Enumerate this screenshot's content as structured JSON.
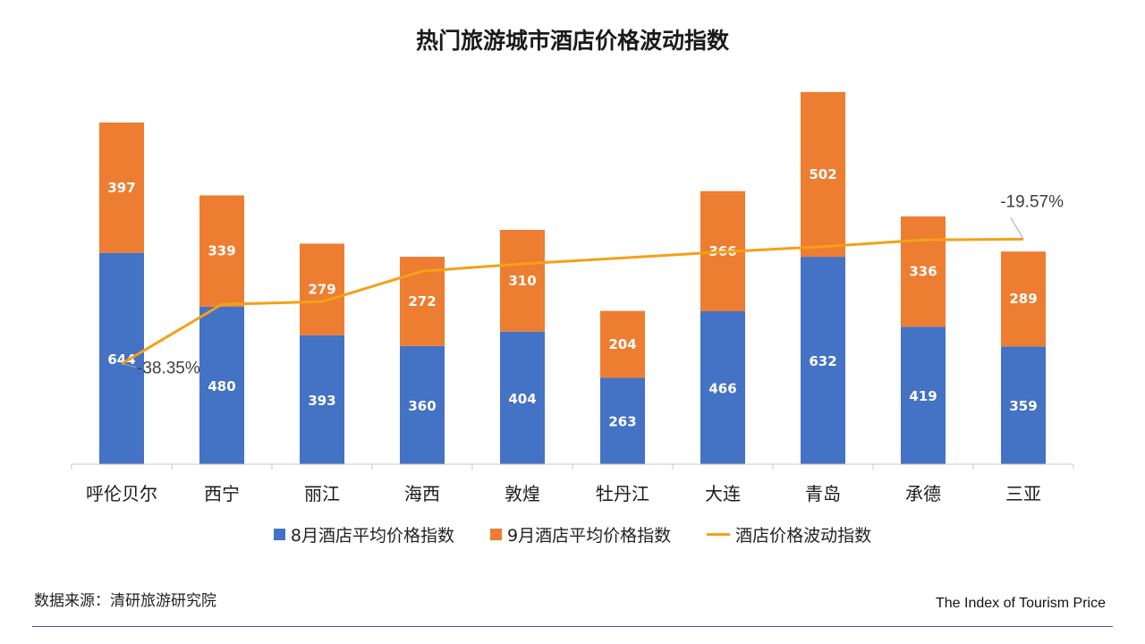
{
  "title": "热门旅游城市酒店价格波动指数",
  "chart_data": {
    "type": "bar",
    "stacked": true,
    "categories": [
      "呼伦贝尔",
      "西宁",
      "丽江",
      "海西",
      "敦煌",
      "牡丹江",
      "大连",
      "青岛",
      "承德",
      "三亚"
    ],
    "series": [
      {
        "name": "8月酒店平均价格指数",
        "type": "bar",
        "color": "#4472C4",
        "values": [
          644,
          480,
          393,
          360,
          404,
          263,
          466,
          632,
          419,
          359
        ]
      },
      {
        "name": "9月酒店平均价格指数",
        "type": "bar",
        "color": "#ED7D31",
        "values": [
          397,
          339,
          279,
          272,
          310,
          204,
          366,
          502,
          336,
          289
        ]
      },
      {
        "name": "酒店价格波动指数",
        "type": "line",
        "color": "#F5A016",
        "values": [
          -38.35,
          -29.4,
          -29.0,
          -24.4,
          -23.3,
          -22.4,
          -21.5,
          -20.7,
          -19.7,
          -19.57
        ],
        "labels": [
          "-38.35%",
          "",
          "",
          "",
          "",
          "",
          "",
          "",
          "",
          "-19.57%"
        ]
      }
    ],
    "ylim": [
      0,
      1150
    ],
    "line_ylim": [
      -45,
      -14
    ],
    "legend": "bottom",
    "grid": false
  },
  "source": "数据来源：清研旅游研究院",
  "brand": "The Index of Tourism Price"
}
